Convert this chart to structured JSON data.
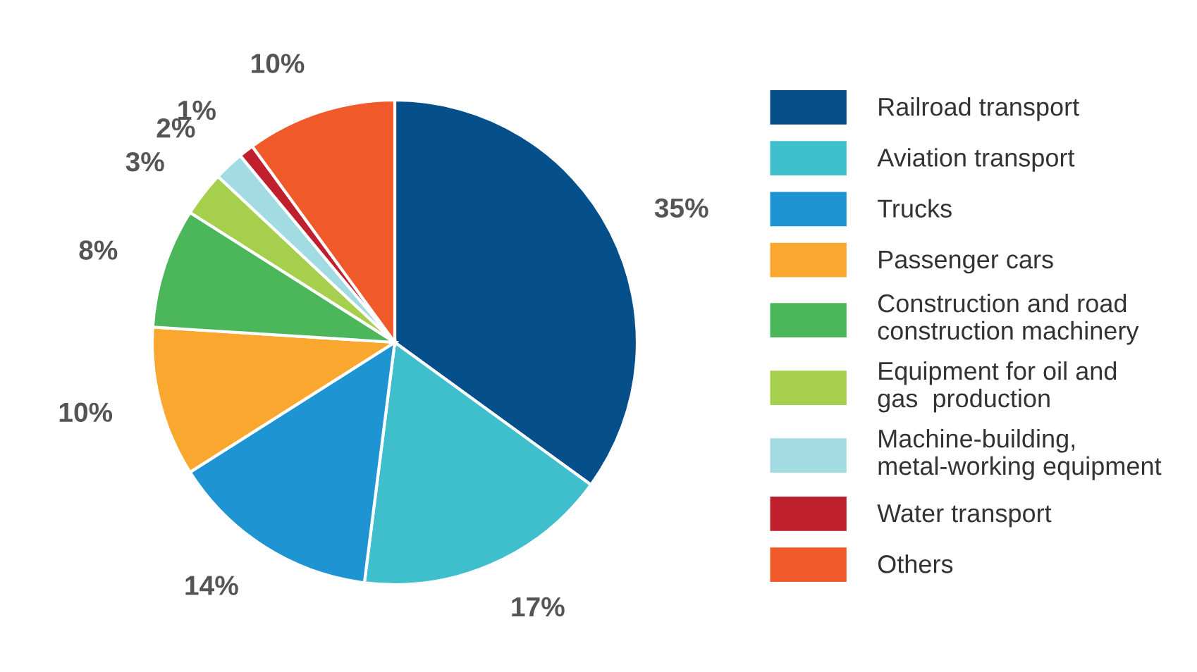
{
  "chart_data": {
    "type": "pie",
    "categories": [
      "Railroad transport",
      "Aviation transport",
      "Trucks",
      "Passenger cars",
      "Construction and road\nconstruction machinery",
      "Equipment for oil and\ngas  production",
      "Machine-building,\nmetal-working equipment",
      "Water transport",
      "Others"
    ],
    "values": [
      35,
      17,
      14,
      10,
      8,
      3,
      2,
      1,
      10
    ],
    "value_labels": [
      "35%",
      "17%",
      "14%",
      "10%",
      "8%",
      "3%",
      "2%",
      "1%",
      "10%"
    ],
    "colors": [
      "#05508a",
      "#3fbfcc",
      "#1e94d2",
      "#f9a72f",
      "#4cb75a",
      "#a6cf4d",
      "#a3dbe3",
      "#c01f2e",
      "#f05a2a"
    ],
    "legend": "right"
  }
}
